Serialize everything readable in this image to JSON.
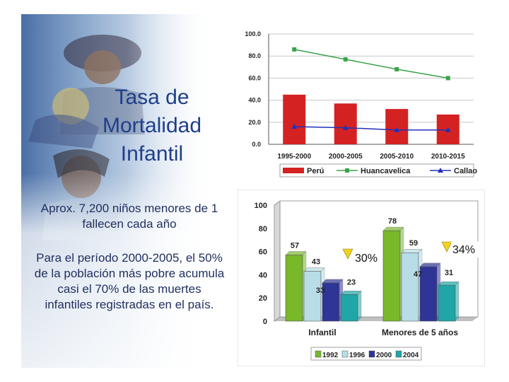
{
  "title_lines": [
    "Tasa de",
    "Mortalidad",
    "Infantil"
  ],
  "notes": [
    "Aprox. 7,200 niños menores de 1 fallecen cada año",
    "Para el período 2000-2005, el 50% de la población más pobre acumula casi el 70% de las muertes infantiles registradas en el país."
  ],
  "colors": {
    "peru": "#d42222",
    "huancavelica": "#3ba34a",
    "callao": "#2330b8",
    "y1992": "#78b82a",
    "y1996": "#b8dde6",
    "y2000": "#2e3596",
    "y2004": "#20a6a6",
    "arrow": "#f2d21c"
  },
  "chart_data": [
    {
      "type": "bar",
      "categories": [
        "1995-2000",
        "2000-2005",
        "2005-2010",
        "2010-2015"
      ],
      "series": [
        {
          "name": "Perú",
          "kind": "bar",
          "values": [
            45,
            37,
            32,
            27
          ]
        },
        {
          "name": "Huancavelica",
          "kind": "line",
          "values": [
            86,
            77,
            68,
            60
          ]
        },
        {
          "name": "Callao",
          "kind": "line",
          "values": [
            16,
            15,
            13,
            13
          ]
        }
      ],
      "yticks": [
        "0.0",
        "20.0",
        "40.0",
        "60.0",
        "80.0",
        "100.0"
      ],
      "ylim": [
        0,
        100
      ],
      "grid": true,
      "legend": "bottom"
    },
    {
      "type": "bar",
      "categories": [
        "Infantil",
        "Menores de 5 años"
      ],
      "series": [
        {
          "name": "1992",
          "values": [
            57,
            78
          ]
        },
        {
          "name": "1996",
          "values": [
            43,
            59
          ]
        },
        {
          "name": "2000",
          "values": [
            33,
            47
          ]
        },
        {
          "name": "2004",
          "values": [
            23,
            31
          ]
        }
      ],
      "data_labels": [
        [
          "57",
          "43",
          "33",
          "23"
        ],
        [
          "78",
          "59",
          "47",
          "31"
        ]
      ],
      "yticks": [
        "0",
        "20",
        "40",
        "60",
        "80",
        "100"
      ],
      "ylim": [
        0,
        100
      ],
      "annotations": [
        "30%",
        "34%"
      ],
      "legend": "bottom"
    }
  ]
}
